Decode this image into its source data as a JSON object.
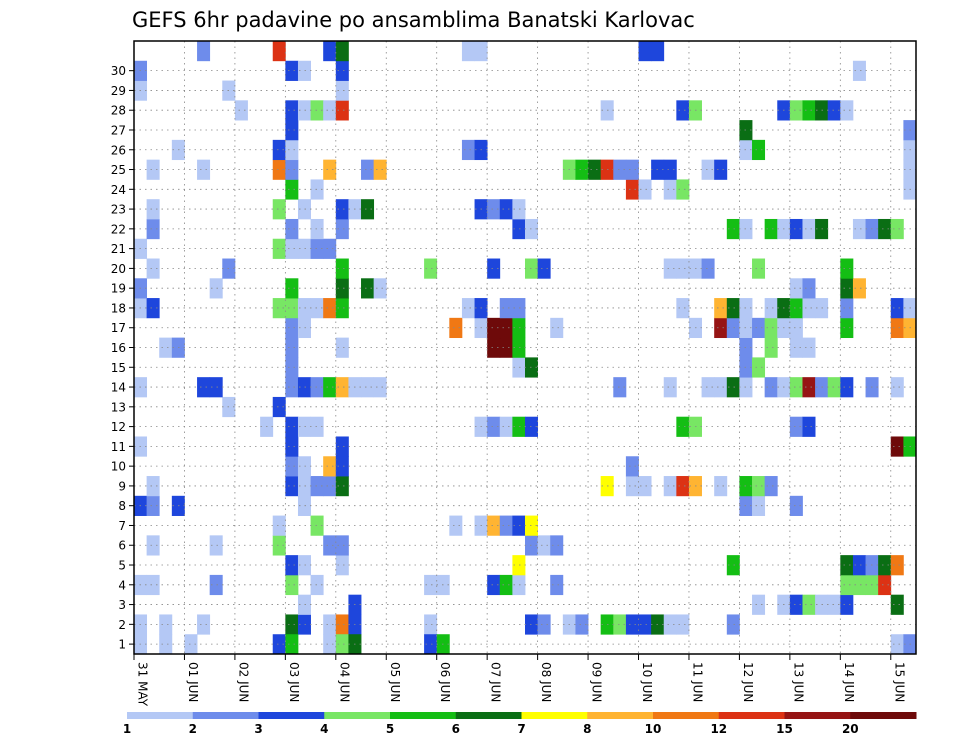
{
  "chart_data": {
    "type": "heatmap",
    "title": "GEFS 6hr padavine po ansamblima Banatski Karlovac",
    "xlabel": "",
    "ylabel": "",
    "x_tick_labels": [
      "31 MAY",
      "01 JUN",
      "02 JUN",
      "03 JUN",
      "04 JUN",
      "05 JUN",
      "06 JUN",
      "07 JUN",
      "08 JUN",
      "09 JUN",
      "10 JUN",
      "11 JUN",
      "12 JUN",
      "13 JUN",
      "14 JUN",
      "15 JUN"
    ],
    "y_tick_labels": [
      "1",
      "2",
      "3",
      "4",
      "5",
      "6",
      "7",
      "8",
      "9",
      "10",
      "11",
      "12",
      "13",
      "14",
      "15",
      "16",
      "17",
      "18",
      "19",
      "20",
      "21",
      "22",
      "23",
      "24",
      "25",
      "26",
      "27",
      "28",
      "29",
      "30"
    ],
    "xlim": [
      0,
      61
    ],
    "ylim": [
      0,
      30
    ],
    "grid": true,
    "colorbar": {
      "labels": [
        "1",
        "2",
        "3",
        "4",
        "5",
        "6",
        "7",
        "8",
        "10",
        "12",
        "15",
        "20"
      ],
      "colors": [
        "#b4c8f5",
        "#6e8ceb",
        "#1e46dc",
        "#78e664",
        "#14be14",
        "#0a6e14",
        "#ffff00",
        "#ffb432",
        "#f07814",
        "#dc3214",
        "#961414",
        "#6e0a0a"
      ]
    },
    "colors": [
      "#b4c8f5",
      "#6e8ceb",
      "#1e46dc",
      "#78e664",
      "#14be14",
      "#0a6e14",
      "#ffff00",
      "#ffb432",
      "#f07814",
      "#dc3214",
      "#961414",
      "#6e0a0a"
    ],
    "cells": [
      [
        0,
        1,
        1
      ],
      [
        2,
        1,
        1
      ],
      [
        5,
        1,
        1
      ],
      [
        12,
        1,
        6
      ],
      [
        13,
        1,
        3
      ],
      [
        15,
        1,
        1
      ],
      [
        16,
        1,
        9
      ],
      [
        17,
        1,
        3
      ],
      [
        23,
        1,
        1
      ],
      [
        31,
        1,
        3
      ],
      [
        32,
        1,
        2
      ],
      [
        34,
        1,
        1
      ],
      [
        35,
        1,
        2
      ],
      [
        37,
        1,
        5
      ],
      [
        38,
        1,
        4
      ],
      [
        39,
        1,
        3
      ],
      [
        40,
        1,
        3
      ],
      [
        41,
        1,
        6
      ],
      [
        42,
        1,
        1
      ],
      [
        43,
        1,
        1
      ],
      [
        47,
        1,
        2
      ],
      [
        13,
        2,
        1
      ],
      [
        17,
        2,
        3
      ],
      [
        49,
        2,
        1
      ],
      [
        51,
        2,
        1
      ],
      [
        52,
        2,
        3
      ],
      [
        53,
        2,
        4
      ],
      [
        54,
        2,
        1
      ],
      [
        55,
        2,
        1
      ],
      [
        56,
        2,
        3
      ],
      [
        60,
        2,
        6
      ],
      [
        0,
        3,
        1
      ],
      [
        1,
        3,
        1
      ],
      [
        6,
        3,
        2
      ],
      [
        12,
        3,
        4
      ],
      [
        14,
        3,
        1
      ],
      [
        23,
        3,
        1
      ],
      [
        24,
        3,
        1
      ],
      [
        28,
        3,
        3
      ],
      [
        29,
        3,
        5
      ],
      [
        30,
        3,
        1
      ],
      [
        33,
        3,
        2
      ],
      [
        56,
        3,
        4
      ],
      [
        57,
        3,
        4
      ],
      [
        58,
        3,
        4
      ],
      [
        59,
        3,
        10
      ],
      [
        12,
        4,
        3
      ],
      [
        13,
        4,
        1
      ],
      [
        16,
        4,
        1
      ],
      [
        30,
        4,
        7
      ],
      [
        47,
        4,
        5
      ],
      [
        56,
        4,
        6
      ],
      [
        57,
        4,
        3
      ],
      [
        58,
        4,
        2
      ],
      [
        59,
        4,
        6
      ],
      [
        60,
        4,
        9
      ],
      [
        1,
        5,
        1
      ],
      [
        6,
        5,
        1
      ],
      [
        11,
        5,
        4
      ],
      [
        15,
        5,
        2
      ],
      [
        16,
        5,
        2
      ],
      [
        31,
        5,
        2
      ],
      [
        32,
        5,
        1
      ],
      [
        33,
        5,
        2
      ],
      [
        11,
        6,
        1
      ],
      [
        14,
        6,
        4
      ],
      [
        25,
        6,
        1
      ],
      [
        27,
        6,
        1
      ],
      [
        28,
        6,
        8
      ],
      [
        29,
        6,
        2
      ],
      [
        30,
        6,
        3
      ],
      [
        31,
        6,
        7
      ],
      [
        0,
        7,
        3
      ],
      [
        1,
        7,
        2
      ],
      [
        3,
        7,
        3
      ],
      [
        13,
        7,
        1
      ],
      [
        48,
        7,
        2
      ],
      [
        49,
        7,
        1
      ],
      [
        52,
        7,
        2
      ],
      [
        1,
        8,
        1
      ],
      [
        12,
        8,
        3
      ],
      [
        13,
        8,
        1
      ],
      [
        14,
        8,
        2
      ],
      [
        15,
        8,
        2
      ],
      [
        16,
        8,
        6
      ],
      [
        37,
        8,
        7
      ],
      [
        39,
        8,
        1
      ],
      [
        40,
        8,
        1
      ],
      [
        42,
        8,
        1
      ],
      [
        43,
        8,
        10
      ],
      [
        44,
        8,
        8
      ],
      [
        46,
        8,
        1
      ],
      [
        48,
        8,
        5
      ],
      [
        49,
        8,
        4
      ],
      [
        50,
        8,
        2
      ],
      [
        12,
        9,
        2
      ],
      [
        13,
        9,
        1
      ],
      [
        15,
        9,
        8
      ],
      [
        16,
        9,
        3
      ],
      [
        39,
        9,
        2
      ],
      [
        0,
        10,
        1
      ],
      [
        12,
        10,
        3
      ],
      [
        16,
        10,
        3
      ],
      [
        60,
        10,
        12
      ],
      [
        61,
        10,
        5
      ],
      [
        10,
        11,
        1
      ],
      [
        12,
        11,
        3
      ],
      [
        13,
        11,
        1
      ],
      [
        14,
        11,
        1
      ],
      [
        27,
        11,
        1
      ],
      [
        28,
        11,
        2
      ],
      [
        29,
        11,
        1
      ],
      [
        30,
        11,
        5
      ],
      [
        31,
        11,
        3
      ],
      [
        43,
        11,
        5
      ],
      [
        44,
        11,
        4
      ],
      [
        52,
        11,
        2
      ],
      [
        53,
        11,
        3
      ],
      [
        7,
        12,
        1
      ],
      [
        11,
        12,
        3
      ],
      [
        0,
        13,
        1
      ],
      [
        5,
        13,
        3
      ],
      [
        6,
        13,
        3
      ],
      [
        12,
        13,
        2
      ],
      [
        13,
        13,
        3
      ],
      [
        14,
        13,
        2
      ],
      [
        15,
        13,
        5
      ],
      [
        16,
        13,
        8
      ],
      [
        17,
        13,
        1
      ],
      [
        18,
        13,
        1
      ],
      [
        19,
        13,
        1
      ],
      [
        38,
        13,
        2
      ],
      [
        42,
        13,
        1
      ],
      [
        45,
        13,
        1
      ],
      [
        46,
        13,
        1
      ],
      [
        47,
        13,
        6
      ],
      [
        48,
        13,
        1
      ],
      [
        50,
        13,
        2
      ],
      [
        51,
        13,
        1
      ],
      [
        52,
        13,
        4
      ],
      [
        53,
        13,
        11
      ],
      [
        54,
        13,
        2
      ],
      [
        55,
        13,
        4
      ],
      [
        56,
        13,
        3
      ],
      [
        58,
        13,
        2
      ],
      [
        60,
        13,
        1
      ],
      [
        12,
        14,
        2
      ],
      [
        30,
        14,
        1
      ],
      [
        31,
        14,
        6
      ],
      [
        48,
        14,
        2
      ],
      [
        49,
        14,
        4
      ],
      [
        2,
        15,
        1
      ],
      [
        3,
        15,
        2
      ],
      [
        12,
        15,
        2
      ],
      [
        16,
        15,
        1
      ],
      [
        28,
        15,
        12
      ],
      [
        29,
        15,
        12
      ],
      [
        30,
        15,
        5
      ],
      [
        48,
        15,
        2
      ],
      [
        50,
        15,
        4
      ],
      [
        52,
        15,
        1
      ],
      [
        53,
        15,
        1
      ],
      [
        12,
        16,
        2
      ],
      [
        13,
        16,
        1
      ],
      [
        25,
        16,
        9
      ],
      [
        27,
        16,
        1
      ],
      [
        28,
        16,
        12
      ],
      [
        29,
        16,
        12
      ],
      [
        30,
        16,
        5
      ],
      [
        33,
        16,
        1
      ],
      [
        44,
        16,
        1
      ],
      [
        46,
        16,
        11
      ],
      [
        47,
        16,
        2
      ],
      [
        48,
        16,
        1
      ],
      [
        49,
        16,
        2
      ],
      [
        50,
        16,
        4
      ],
      [
        51,
        16,
        1
      ],
      [
        52,
        16,
        1
      ],
      [
        56,
        16,
        5
      ],
      [
        60,
        16,
        9
      ],
      [
        61,
        16,
        8
      ],
      [
        0,
        17,
        1
      ],
      [
        1,
        17,
        3
      ],
      [
        11,
        17,
        4
      ],
      [
        12,
        17,
        4
      ],
      [
        13,
        17,
        1
      ],
      [
        14,
        17,
        1
      ],
      [
        15,
        17,
        9
      ],
      [
        16,
        17,
        5
      ],
      [
        26,
        17,
        1
      ],
      [
        27,
        17,
        3
      ],
      [
        29,
        17,
        2
      ],
      [
        30,
        17,
        2
      ],
      [
        43,
        17,
        1
      ],
      [
        46,
        17,
        8
      ],
      [
        47,
        17,
        6
      ],
      [
        48,
        17,
        1
      ],
      [
        50,
        17,
        1
      ],
      [
        51,
        17,
        6
      ],
      [
        52,
        17,
        5
      ],
      [
        53,
        17,
        1
      ],
      [
        54,
        17,
        1
      ],
      [
        56,
        17,
        2
      ],
      [
        60,
        17,
        3
      ],
      [
        61,
        17,
        1
      ],
      [
        0,
        18,
        2
      ],
      [
        6,
        18,
        1
      ],
      [
        12,
        18,
        5
      ],
      [
        16,
        18,
        6
      ],
      [
        18,
        18,
        6
      ],
      [
        19,
        18,
        1
      ],
      [
        52,
        18,
        1
      ],
      [
        53,
        18,
        2
      ],
      [
        56,
        18,
        6
      ],
      [
        57,
        18,
        8
      ],
      [
        1,
        19,
        1
      ],
      [
        7,
        19,
        2
      ],
      [
        16,
        19,
        5
      ],
      [
        23,
        19,
        4
      ],
      [
        28,
        19,
        3
      ],
      [
        31,
        19,
        4
      ],
      [
        32,
        19,
        3
      ],
      [
        42,
        19,
        1
      ],
      [
        43,
        19,
        1
      ],
      [
        44,
        19,
        1
      ],
      [
        45,
        19,
        2
      ],
      [
        49,
        19,
        4
      ],
      [
        56,
        19,
        5
      ],
      [
        0,
        20,
        1
      ],
      [
        11,
        20,
        4
      ],
      [
        12,
        20,
        1
      ],
      [
        13,
        20,
        1
      ],
      [
        14,
        20,
        2
      ],
      [
        15,
        20,
        2
      ],
      [
        1,
        21,
        2
      ],
      [
        12,
        21,
        2
      ],
      [
        14,
        21,
        1
      ],
      [
        16,
        21,
        2
      ],
      [
        30,
        21,
        3
      ],
      [
        31,
        21,
        1
      ],
      [
        47,
        21,
        5
      ],
      [
        48,
        21,
        1
      ],
      [
        50,
        21,
        5
      ],
      [
        51,
        21,
        1
      ],
      [
        52,
        21,
        3
      ],
      [
        53,
        21,
        1
      ],
      [
        54,
        21,
        6
      ],
      [
        57,
        21,
        1
      ],
      [
        58,
        21,
        2
      ],
      [
        59,
        21,
        6
      ],
      [
        60,
        21,
        4
      ],
      [
        1,
        22,
        1
      ],
      [
        11,
        22,
        4
      ],
      [
        13,
        22,
        1
      ],
      [
        16,
        22,
        3
      ],
      [
        17,
        22,
        1
      ],
      [
        18,
        22,
        6
      ],
      [
        27,
        22,
        3
      ],
      [
        28,
        22,
        2
      ],
      [
        29,
        22,
        3
      ],
      [
        30,
        22,
        1
      ],
      [
        12,
        23,
        5
      ],
      [
        14,
        23,
        1
      ],
      [
        39,
        23,
        10
      ],
      [
        40,
        23,
        1
      ],
      [
        42,
        23,
        1
      ],
      [
        43,
        23,
        4
      ],
      [
        61,
        23,
        1
      ],
      [
        1,
        24,
        1
      ],
      [
        5,
        24,
        1
      ],
      [
        11,
        24,
        9
      ],
      [
        12,
        24,
        2
      ],
      [
        15,
        24,
        8
      ],
      [
        18,
        24,
        2
      ],
      [
        19,
        24,
        8
      ],
      [
        34,
        24,
        4
      ],
      [
        35,
        24,
        5
      ],
      [
        36,
        24,
        6
      ],
      [
        37,
        24,
        10
      ],
      [
        38,
        24,
        2
      ],
      [
        39,
        24,
        2
      ],
      [
        41,
        24,
        3
      ],
      [
        42,
        24,
        3
      ],
      [
        45,
        24,
        1
      ],
      [
        46,
        24,
        3
      ],
      [
        61,
        24,
        1
      ],
      [
        3,
        25,
        1
      ],
      [
        11,
        25,
        3
      ],
      [
        12,
        25,
        1
      ],
      [
        26,
        25,
        2
      ],
      [
        27,
        25,
        3
      ],
      [
        48,
        25,
        1
      ],
      [
        49,
        25,
        5
      ],
      [
        61,
        25,
        1
      ],
      [
        12,
        26,
        3
      ],
      [
        48,
        26,
        6
      ],
      [
        61,
        26,
        2
      ],
      [
        8,
        27,
        1
      ],
      [
        12,
        27,
        3
      ],
      [
        13,
        27,
        1
      ],
      [
        14,
        27,
        4
      ],
      [
        15,
        27,
        1
      ],
      [
        16,
        27,
        10
      ],
      [
        37,
        27,
        1
      ],
      [
        43,
        27,
        3
      ],
      [
        44,
        27,
        4
      ],
      [
        51,
        27,
        3
      ],
      [
        52,
        27,
        4
      ],
      [
        53,
        27,
        5
      ],
      [
        54,
        27,
        6
      ],
      [
        55,
        27,
        3
      ],
      [
        56,
        27,
        1
      ],
      [
        0,
        28,
        1
      ],
      [
        7,
        28,
        1
      ],
      [
        16,
        28,
        1
      ],
      [
        0,
        29,
        2
      ],
      [
        12,
        29,
        3
      ],
      [
        13,
        29,
        1
      ],
      [
        16,
        29,
        3
      ],
      [
        57,
        29,
        1
      ],
      [
        5,
        30,
        2
      ],
      [
        11,
        30,
        10
      ],
      [
        15,
        30,
        3
      ],
      [
        16,
        30,
        6
      ],
      [
        26,
        30,
        1
      ],
      [
        27,
        30,
        1
      ],
      [
        40,
        30,
        3
      ],
      [
        41,
        30,
        3
      ],
      [
        0,
        0,
        1
      ],
      [
        2,
        0,
        1
      ],
      [
        4,
        0,
        1
      ],
      [
        11,
        0,
        3
      ],
      [
        12,
        0,
        5
      ],
      [
        15,
        0,
        1
      ],
      [
        16,
        0,
        4
      ],
      [
        17,
        0,
        6
      ],
      [
        23,
        0,
        3
      ],
      [
        24,
        0,
        5
      ],
      [
        60,
        0,
        1
      ],
      [
        61,
        0,
        2
      ]
    ]
  }
}
